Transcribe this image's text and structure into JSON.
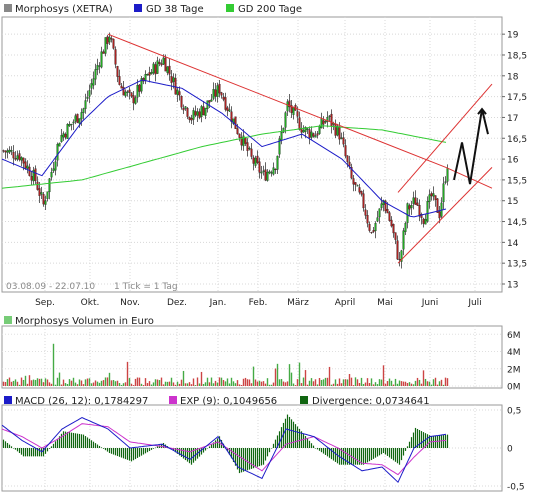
{
  "chart_data": {
    "type": "stock_candlestick_with_indicators",
    "price_panel": {
      "legend": [
        {
          "name": "Morphosys (XETRA)",
          "color": "#666666"
        },
        {
          "name": "GD 38 Tage",
          "color": "#1c1cc8"
        },
        {
          "name": "GD 200 Tage",
          "color": "#33cc33"
        }
      ],
      "date_range_text": "03.08.09 - 22.07.10",
      "tick_text": "1 Tick = 1 Tag",
      "x_ticks": [
        "Sep.",
        "Okt.",
        "Nov.",
        "Dez.",
        "Jan.",
        "Feb.",
        "März",
        "April",
        "Mai",
        "Juni",
        "Juli"
      ],
      "y_ticks": [
        "19",
        "18,5",
        "18",
        "17,5",
        "17",
        "16,5",
        "16",
        "15,5",
        "15",
        "14,5",
        "14",
        "13,5",
        "13"
      ],
      "ylim": [
        13,
        19.1
      ],
      "price_path": [
        [
          0,
          16.2
        ],
        [
          8,
          16.1
        ],
        [
          16,
          15.5
        ],
        [
          20,
          14.9
        ],
        [
          28,
          16.5
        ],
        [
          40,
          17.2
        ],
        [
          48,
          18.4
        ],
        [
          53,
          19.0
        ],
        [
          58,
          17.8
        ],
        [
          64,
          17.4
        ],
        [
          72,
          18.0
        ],
        [
          80,
          18.4
        ],
        [
          88,
          17.5
        ],
        [
          94,
          17.0
        ],
        [
          100,
          17.2
        ],
        [
          108,
          17.7
        ],
        [
          116,
          16.8
        ],
        [
          124,
          16.0
        ],
        [
          130,
          15.6
        ],
        [
          136,
          15.9
        ],
        [
          142,
          17.3
        ],
        [
          150,
          16.7
        ],
        [
          156,
          16.6
        ],
        [
          162,
          17.0
        ],
        [
          168,
          16.6
        ],
        [
          174,
          15.5
        ],
        [
          180,
          14.9
        ],
        [
          184,
          14.2
        ],
        [
          190,
          15.0
        ],
        [
          194,
          14.4
        ],
        [
          198,
          13.5
        ],
        [
          202,
          14.8
        ],
        [
          206,
          15.0
        ],
        [
          210,
          14.6
        ],
        [
          214,
          15.1
        ],
        [
          218,
          14.7
        ],
        [
          222,
          15.9
        ]
      ],
      "gd38_path": [
        [
          0,
          16.0
        ],
        [
          20,
          15.6
        ],
        [
          40,
          16.9
        ],
        [
          53,
          17.5
        ],
        [
          70,
          17.9
        ],
        [
          90,
          17.7
        ],
        [
          110,
          17.1
        ],
        [
          130,
          16.3
        ],
        [
          150,
          16.6
        ],
        [
          170,
          16.0
        ],
        [
          190,
          15.0
        ],
        [
          205,
          14.6
        ],
        [
          222,
          14.8
        ]
      ],
      "gd200_path": [
        [
          0,
          15.3
        ],
        [
          40,
          15.5
        ],
        [
          70,
          15.9
        ],
        [
          100,
          16.3
        ],
        [
          130,
          16.6
        ],
        [
          160,
          16.8
        ],
        [
          190,
          16.7
        ],
        [
          222,
          16.4
        ]
      ],
      "resistance_line": [
        [
          53,
          19.0
        ],
        [
          222,
          15.8
        ],
        [
          245,
          15.3
        ]
      ],
      "channel_lower": [
        [
          198,
          13.5
        ],
        [
          245,
          15.8
        ]
      ],
      "channel_upper": [
        [
          198,
          15.2
        ],
        [
          245,
          17.8
        ]
      ],
      "forecast_arrow": [
        [
          226,
          15.5
        ],
        [
          230,
          16.4
        ],
        [
          234,
          15.4
        ],
        [
          240,
          17.2
        ],
        [
          243,
          16.6
        ]
      ]
    },
    "volume_panel": {
      "legend": "Morphosys Volumen in Euro",
      "y_ticks": [
        "6M",
        "4M",
        "2M",
        "0M"
      ],
      "ylim": [
        0,
        6.5
      ]
    },
    "macd_panel": {
      "legend": [
        {
          "name": "MACD (26, 12): 0,1784297",
          "color": "#1c1cc8"
        },
        {
          "name": "EXP (9): 0,1049656",
          "color": "#cc33cc"
        },
        {
          "name": "Divergence: 0,0734641",
          "color": "#116611"
        }
      ],
      "y_ticks": [
        "0,5",
        "0",
        "-0,5"
      ],
      "ylim": [
        -0.55,
        0.55
      ],
      "macd_path": [
        [
          0,
          0.3
        ],
        [
          10,
          0.1
        ],
        [
          20,
          -0.05
        ],
        [
          30,
          0.25
        ],
        [
          40,
          0.4
        ],
        [
          53,
          0.25
        ],
        [
          64,
          0.0
        ],
        [
          80,
          0.05
        ],
        [
          94,
          -0.15
        ],
        [
          108,
          0.15
        ],
        [
          118,
          -0.25
        ],
        [
          130,
          -0.4
        ],
        [
          142,
          0.25
        ],
        [
          156,
          0.15
        ],
        [
          168,
          -0.1
        ],
        [
          180,
          -0.3
        ],
        [
          190,
          -0.25
        ],
        [
          198,
          -0.45
        ],
        [
          206,
          0.0
        ],
        [
          214,
          0.15
        ],
        [
          222,
          0.18
        ]
      ],
      "exp_path": [
        [
          0,
          0.25
        ],
        [
          10,
          0.15
        ],
        [
          20,
          0.0
        ],
        [
          30,
          0.15
        ],
        [
          40,
          0.32
        ],
        [
          53,
          0.28
        ],
        [
          64,
          0.08
        ],
        [
          80,
          0.02
        ],
        [
          94,
          -0.05
        ],
        [
          108,
          0.08
        ],
        [
          118,
          -0.1
        ],
        [
          130,
          -0.3
        ],
        [
          142,
          0.05
        ],
        [
          156,
          0.15
        ],
        [
          168,
          0.0
        ],
        [
          180,
          -0.2
        ],
        [
          190,
          -0.22
        ],
        [
          198,
          -0.35
        ],
        [
          206,
          -0.12
        ],
        [
          214,
          0.08
        ],
        [
          222,
          0.1
        ]
      ]
    }
  }
}
